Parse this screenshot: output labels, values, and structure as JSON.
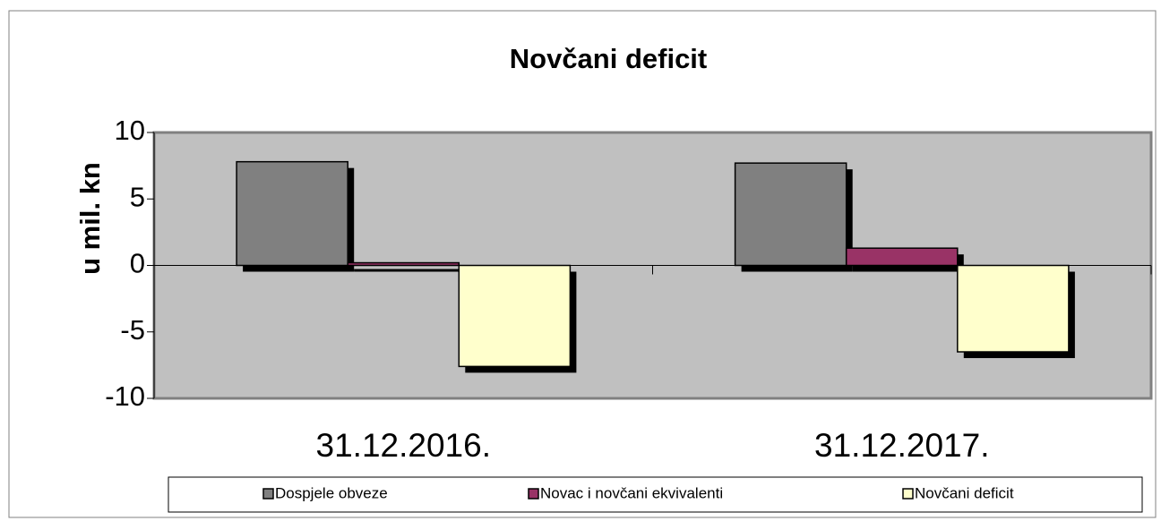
{
  "chart_data": {
    "type": "bar",
    "title": "Novčani deficit",
    "y_label": "u mil. kn",
    "categories": [
      "31.12.2016.",
      "31.12.2017."
    ],
    "series": [
      {
        "name": "Dospjele obveze",
        "color": "#808080",
        "values": [
          7.8,
          7.7
        ]
      },
      {
        "name": "Novac i novčani ekvivalenti",
        "color": "#993366",
        "values": [
          0.2,
          1.3
        ]
      },
      {
        "name": "Novčani deficit",
        "color": "#ffffcc",
        "values": [
          -7.6,
          -6.5
        ]
      }
    ],
    "ylim": [
      -10,
      10
    ],
    "yticks": [
      -10,
      -5,
      0,
      5,
      10
    ],
    "grid": false,
    "plot_background": "#c0c0c0",
    "legend": "bottom"
  }
}
